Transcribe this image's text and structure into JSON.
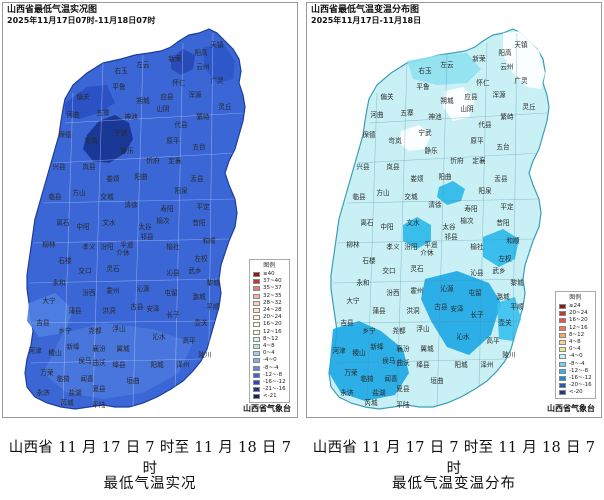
{
  "panels": [
    {
      "title": "山西省最低气温实况图",
      "subtitle": "2025年11月17日07时-11月18日07时",
      "agency": "山西省气象台",
      "legend_title": "图例",
      "caption_line1": "山西省 11 月 17 日 7 时至 11 月 18 日 7 时",
      "caption_line2": "最低气温实况",
      "base_color": "#3a66d6",
      "border_color": "#1d3f9c",
      "patches": [
        {
          "color": "#17338f",
          "shape": "datong-core"
        },
        {
          "color": "#2748b4",
          "shape": "wutai"
        },
        {
          "color": "#2a50c2",
          "shape": "northwest"
        },
        {
          "color": "#2d57c9",
          "shape": "northeast"
        },
        {
          "color": "#4a78de",
          "shape": "south"
        },
        {
          "color": "#4f80e2",
          "shape": "southwest"
        }
      ],
      "legend": [
        {
          "label": "≥40",
          "color": "#8b1a1a"
        },
        {
          "label": "37~40",
          "color": "#c0392b"
        },
        {
          "label": "35~37",
          "color": "#e67e73"
        },
        {
          "label": "32~35",
          "color": "#f2b2a6"
        },
        {
          "label": "28~32",
          "color": "#f7d6bd"
        },
        {
          "label": "24~28",
          "color": "#fbe7c6"
        },
        {
          "label": "20~24",
          "color": "#fff4c9"
        },
        {
          "label": "16~20",
          "color": "#fffbe0"
        },
        {
          "label": "12~16",
          "color": "#f4fbd8"
        },
        {
          "label": "8~12",
          "color": "#d8f2e4"
        },
        {
          "label": "4~8",
          "color": "#b8e5f0"
        },
        {
          "label": "0~4",
          "color": "#9fcff0"
        },
        {
          "label": "-4~0",
          "color": "#7fb1ea"
        },
        {
          "label": "-8~-4",
          "color": "#5a8ae2"
        },
        {
          "label": "-12~-8",
          "color": "#3f66d0"
        },
        {
          "label": "-16~-12",
          "color": "#2c49b5"
        },
        {
          "label": "-21~-16",
          "color": "#1f3592"
        },
        {
          "label": "<-21",
          "color": "#142466"
        }
      ]
    },
    {
      "title": "山西省最低气温变温分布图",
      "subtitle": "2025年11月17日-11月18日",
      "agency": "山西省气象台",
      "legend_title": "图例",
      "caption_line1": "山西省 11 月 17 日 7 时至 11 月 18 日 7 时",
      "caption_line2": "最低气温变温分布",
      "base_color": "#c9f0f4",
      "border_color": "#3a9fb8",
      "patches": [
        {
          "color": "#ffffff",
          "shape": "northeast-white"
        },
        {
          "color": "#ffffff",
          "shape": "yangquan-white"
        },
        {
          "color": "#ffffff",
          "shape": "central-white"
        },
        {
          "color": "#8fe0f0",
          "shape": "north-light"
        },
        {
          "color": "#29b7ea",
          "shape": "taiyuan"
        },
        {
          "color": "#29b7ea",
          "shape": "jinzhong"
        },
        {
          "color": "#29b7ea",
          "shape": "changzhi-east"
        },
        {
          "color": "#1ba6e6",
          "shape": "south-band"
        },
        {
          "color": "#1ba6e6",
          "shape": "yuncheng"
        },
        {
          "color": "#36c0ee",
          "shape": "southeast"
        }
      ],
      "legend": [
        {
          "label": "≥24",
          "color": "#8b1a1a"
        },
        {
          "label": "20~24",
          "color": "#c0392b"
        },
        {
          "label": "16~20",
          "color": "#e4564b"
        },
        {
          "label": "12~16",
          "color": "#f07a5a"
        },
        {
          "label": "8~12",
          "color": "#f8a867"
        },
        {
          "label": "4~8",
          "color": "#fdd58a"
        },
        {
          "label": "0~4",
          "color": "#d9f08a"
        },
        {
          "label": "-4~0",
          "color": "#c9f0f4"
        },
        {
          "label": "-8~-4",
          "color": "#6fd3ee"
        },
        {
          "label": "-12~-8",
          "color": "#29b7ea"
        },
        {
          "label": "-16~-12",
          "color": "#1a8fd6"
        },
        {
          "label": "-20~-16",
          "color": "#1c5fb8"
        },
        {
          "label": "<-20",
          "color": "#1a3a8a"
        }
      ]
    }
  ],
  "county_labels": [
    {
      "name": "天镇"
    },
    {
      "name": "阳高"
    },
    {
      "name": "云州"
    },
    {
      "name": "新荣"
    },
    {
      "name": "左云"
    },
    {
      "name": "右玉"
    },
    {
      "name": "怀仁"
    },
    {
      "name": "广灵"
    },
    {
      "name": "浑源"
    },
    {
      "name": "应县"
    },
    {
      "name": "灵丘"
    },
    {
      "name": "偏关"
    },
    {
      "name": "平鲁"
    },
    {
      "name": "朔城"
    },
    {
      "name": "山阴"
    },
    {
      "name": "繁峙"
    },
    {
      "name": "代县"
    },
    {
      "name": "河曲"
    },
    {
      "name": "五寨"
    },
    {
      "name": "神池"
    },
    {
      "name": "宁武"
    },
    {
      "name": "原平"
    },
    {
      "name": "五台"
    },
    {
      "name": "保德"
    },
    {
      "name": "岢岚"
    },
    {
      "name": "静乐"
    },
    {
      "name": "忻府"
    },
    {
      "name": "定襄"
    },
    {
      "name": "盂县"
    },
    {
      "name": "兴县"
    },
    {
      "name": "岚县"
    },
    {
      "name": "娄烦"
    },
    {
      "name": "阳曲"
    },
    {
      "name": "阳泉"
    },
    {
      "name": "平定"
    },
    {
      "name": "临县"
    },
    {
      "name": "方山"
    },
    {
      "name": "交城"
    },
    {
      "name": "清徐"
    },
    {
      "name": "寿阳"
    },
    {
      "name": "昔阳"
    },
    {
      "name": "离石"
    },
    {
      "name": "中阳"
    },
    {
      "name": "文水"
    },
    {
      "name": "太谷"
    },
    {
      "name": "榆次"
    },
    {
      "name": "和顺"
    },
    {
      "name": "柳林"
    },
    {
      "name": "石楼"
    },
    {
      "name": "孝义"
    },
    {
      "name": "汾阳"
    },
    {
      "name": "平遥"
    },
    {
      "name": "祁县"
    },
    {
      "name": "左权"
    },
    {
      "name": "榆社"
    },
    {
      "name": "交口"
    },
    {
      "name": "灵石"
    },
    {
      "name": "介休"
    },
    {
      "name": "沁县"
    },
    {
      "name": "武乡"
    },
    {
      "name": "黎城"
    },
    {
      "name": "永和"
    },
    {
      "name": "汾西"
    },
    {
      "name": "霍州"
    },
    {
      "name": "沁源"
    },
    {
      "name": "屯留"
    },
    {
      "name": "潞城"
    },
    {
      "name": "平顺"
    },
    {
      "name": "大宁"
    },
    {
      "name": "蒲县"
    },
    {
      "name": "洪洞"
    },
    {
      "name": "古县"
    },
    {
      "name": "安泽"
    },
    {
      "name": "长子"
    },
    {
      "name": "壶关"
    },
    {
      "name": "吉县"
    },
    {
      "name": "乡宁"
    },
    {
      "name": "尧都"
    },
    {
      "name": "浮山"
    },
    {
      "name": "襄汾"
    },
    {
      "name": "翼城"
    },
    {
      "name": "沁水"
    },
    {
      "name": "高平"
    },
    {
      "name": "陵川"
    },
    {
      "name": "河津"
    },
    {
      "name": "稷山"
    },
    {
      "name": "新绛"
    },
    {
      "name": "曲沃"
    },
    {
      "name": "侯马"
    },
    {
      "name": "绛县"
    },
    {
      "name": "阳城"
    },
    {
      "name": "泽州"
    },
    {
      "name": "万荣"
    },
    {
      "name": "临猗"
    },
    {
      "name": "闻喜"
    },
    {
      "name": "垣曲"
    },
    {
      "name": "盐湖"
    },
    {
      "name": "夏县"
    },
    {
      "name": "永济"
    },
    {
      "name": "平陆"
    },
    {
      "name": "芮城"
    }
  ]
}
